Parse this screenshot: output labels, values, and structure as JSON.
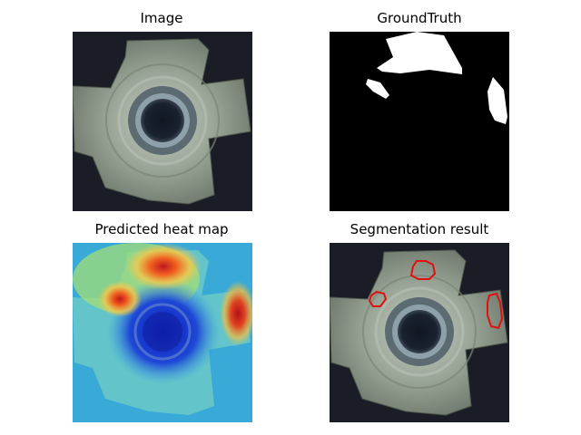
{
  "figure": {
    "panels": [
      {
        "title": "Image"
      },
      {
        "title": "GroundTruth"
      },
      {
        "title": "Predicted heat map"
      },
      {
        "title": "Segmentation result"
      }
    ]
  }
}
